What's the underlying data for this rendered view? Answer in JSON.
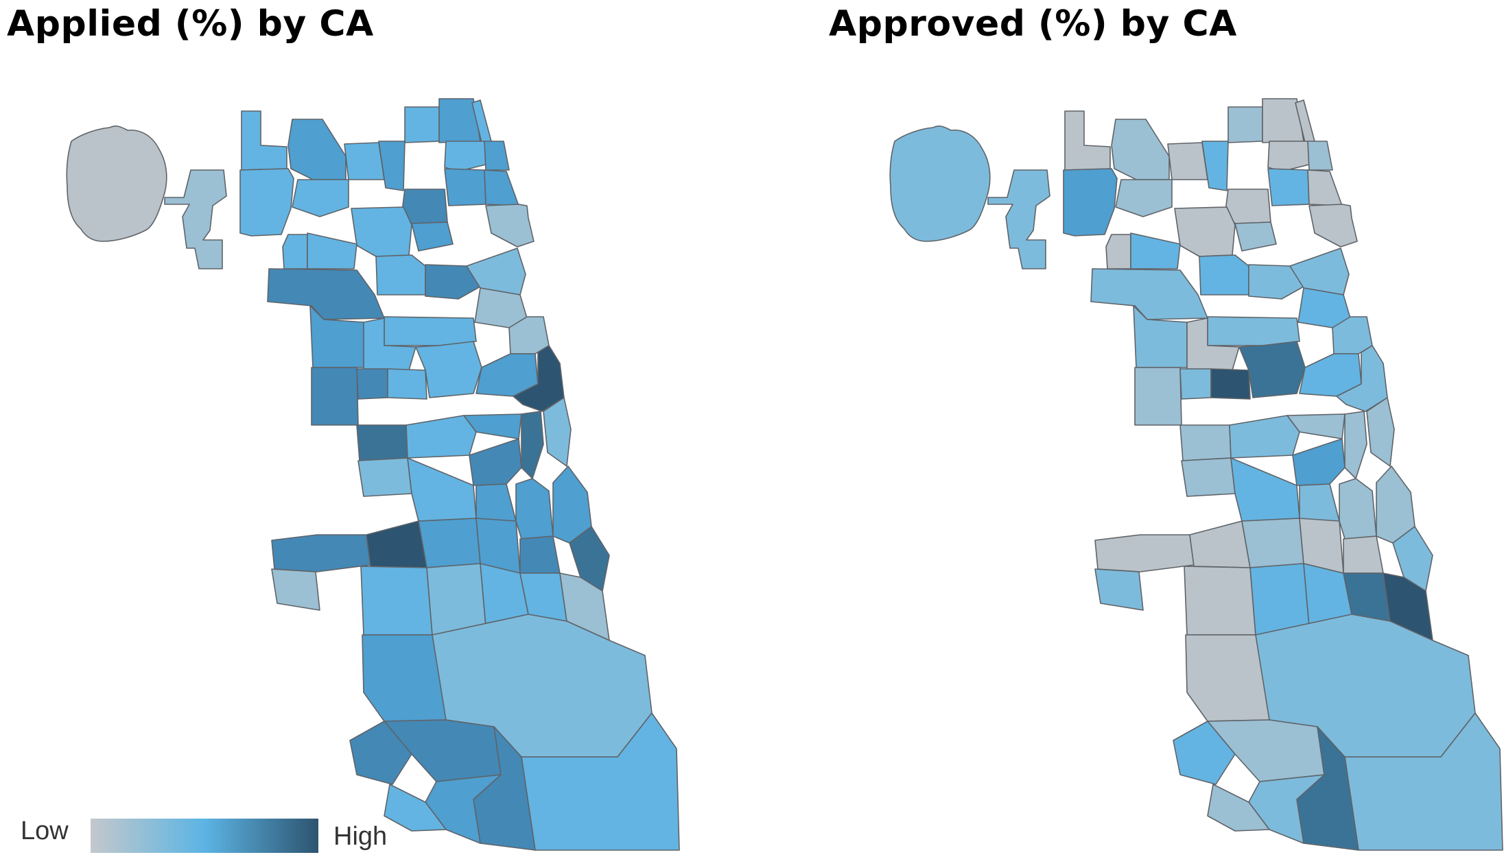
{
  "panels": [
    {
      "title": "Applied (%) by CA"
    },
    {
      "title": "Approved (%) by CA"
    }
  ],
  "legend": {
    "low_label": "Low",
    "high_label": "High",
    "colors": [
      "#c3c8cc",
      "#5cb4e4",
      "#2d5470"
    ]
  },
  "palette": {
    "0": "#b9c3c9",
    "1": "#9bbfd3",
    "2": "#7dbbdc",
    "3": "#63b4e2",
    "4": "#4f9fd0",
    "5": "#4488b6",
    "6": "#3b7396",
    "7": "#2d5470"
  },
  "map_levels": {
    "applied": [
      0,
      1,
      3,
      3,
      4,
      3,
      3,
      4,
      3,
      4,
      3,
      3,
      4,
      5,
      4,
      4,
      3,
      4,
      1,
      3,
      3,
      3,
      5,
      5,
      3,
      2,
      1,
      1,
      4,
      3,
      5,
      5,
      3,
      3,
      4,
      7,
      6,
      3,
      4,
      5,
      6,
      2,
      2,
      3,
      4,
      4,
      4,
      5,
      7,
      4,
      4,
      5,
      6,
      3,
      2,
      3,
      3,
      1,
      2,
      3
    ],
    "approved": [
      2,
      2,
      0,
      4,
      1,
      1,
      0,
      3,
      1,
      0,
      0,
      0,
      1,
      0,
      3,
      0,
      0,
      1,
      0,
      0,
      3,
      3,
      2,
      2,
      2,
      2,
      3,
      2,
      2,
      0,
      1,
      2,
      7,
      6,
      3,
      2,
      1,
      2,
      1,
      4,
      1,
      1,
      1,
      3,
      2,
      1,
      1,
      0,
      0,
      1,
      0,
      0,
      2,
      0,
      3,
      3,
      6,
      7,
      2,
      2
    ]
  }
}
